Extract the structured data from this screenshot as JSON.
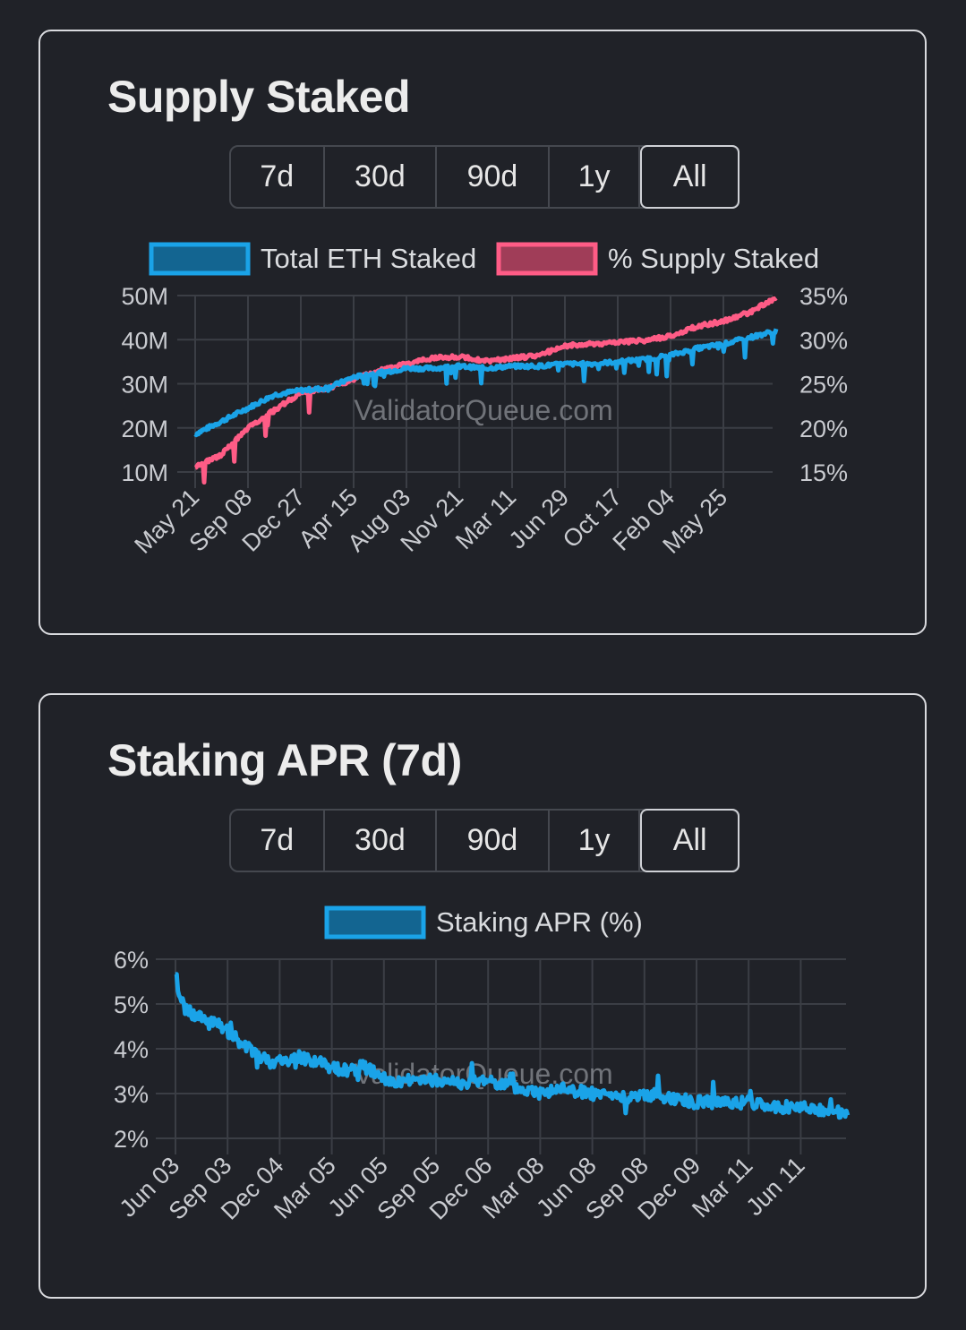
{
  "charts": {
    "supply": {
      "title": "Supply Staked",
      "ranges": [
        "7d",
        "30d",
        "90d",
        "1y",
        "All"
      ],
      "active_range": "All",
      "watermark": "ValidatorQueue.com",
      "colors": {
        "total": "#1aa3e8",
        "percent": "#ff5c86"
      },
      "legend": [
        "Total ETH Staked",
        "% Supply Staked"
      ]
    },
    "apr": {
      "title": "Staking APR (7d)",
      "ranges": [
        "7d",
        "30d",
        "90d",
        "1y",
        "All"
      ],
      "active_range": "All",
      "watermark": "ValidatorQueue.com",
      "colors": {
        "apr": "#1aa3e8"
      },
      "legend": [
        "Staking APR (%)"
      ]
    }
  },
  "chart_data": [
    {
      "type": "line",
      "title": "Supply Staked",
      "x_ticks": [
        "May 21",
        "Sep 08",
        "Dec 27",
        "Apr 15",
        "Aug 03",
        "Nov 21",
        "Mar 11",
        "Jun 29",
        "Oct 17",
        "Feb 04",
        "May 25"
      ],
      "y_left_ticks": [
        "50M",
        "40M",
        "30M",
        "20M",
        "10M"
      ],
      "y_left_range": [
        10000000,
        50000000
      ],
      "y_right_ticks": [
        "35%",
        "30%",
        "25%",
        "20%",
        "15%"
      ],
      "y_right_range": [
        15,
        35
      ],
      "grid": true,
      "legend_position": "top",
      "series": [
        {
          "name": "Total ETH Staked",
          "axis": "left",
          "x": [
            0,
            0.5,
            1,
            1.5,
            2,
            2.5,
            3,
            3.5,
            4,
            4.5,
            5,
            5.5,
            6,
            6.5,
            7,
            7.5,
            8,
            8.5,
            9,
            9.5,
            10,
            10.5,
            11
          ],
          "values": [
            18600000,
            21500000,
            24500000,
            27500000,
            28500000,
            29000000,
            31500000,
            32500000,
            33500000,
            33500000,
            34000000,
            33500000,
            34000000,
            34000000,
            34500000,
            34500000,
            35000000,
            35500000,
            36500000,
            38000000,
            39000000,
            40500000,
            42000000
          ]
        },
        {
          "name": "% Supply Staked",
          "axis": "right",
          "x": [
            0,
            0.5,
            1,
            1.5,
            2,
            2.5,
            3,
            3.5,
            4,
            4.5,
            5,
            5.5,
            6,
            6.5,
            7,
            7.5,
            8,
            8.5,
            9,
            9.5,
            10,
            10.5,
            11
          ],
          "values": [
            15.5,
            17,
            20,
            22,
            24,
            24.5,
            25.5,
            26.5,
            27.3,
            27.9,
            28.1,
            27.6,
            27.9,
            28.2,
            29.3,
            29.5,
            29.7,
            29.9,
            30.4,
            31.5,
            32.1,
            33.1,
            34.8
          ]
        }
      ]
    },
    {
      "type": "line",
      "title": "Staking APR (7d)",
      "x_ticks": [
        "Jun 03",
        "Sep 03",
        "Dec 04",
        "Mar 05",
        "Jun 05",
        "Sep 05",
        "Dec 06",
        "Mar 08",
        "Jun 08",
        "Sep 08",
        "Dec 09",
        "Mar 11",
        "Jun 11"
      ],
      "y_ticks": [
        "6%",
        "5%",
        "4%",
        "3%",
        "2%"
      ],
      "y_range": [
        2,
        6
      ],
      "grid": true,
      "legend_position": "top",
      "series": [
        {
          "name": "Staking APR (%)",
          "x": [
            0,
            0.1,
            0.3,
            0.6,
            0.9,
            1.2,
            1.5,
            1.8,
            2.1,
            2.4,
            2.7,
            3.0,
            3.3,
            3.6,
            3.9,
            4.2,
            4.5,
            5,
            5.5,
            6,
            6.5,
            7,
            7.5,
            8,
            8.5,
            9,
            9.5,
            10,
            10.5,
            11,
            11.5,
            12,
            12.5,
            12.9
          ],
          "values": [
            5.6,
            5.1,
            4.8,
            4.6,
            4.5,
            4.2,
            3.9,
            3.7,
            3.7,
            3.8,
            3.7,
            3.6,
            3.5,
            3.6,
            3.4,
            3.2,
            3.3,
            3.3,
            3.2,
            3.3,
            3.1,
            3.0,
            3.1,
            3.0,
            2.9,
            3.0,
            2.9,
            2.8,
            2.8,
            2.8,
            2.7,
            2.7,
            2.6,
            2.55
          ]
        }
      ]
    }
  ]
}
